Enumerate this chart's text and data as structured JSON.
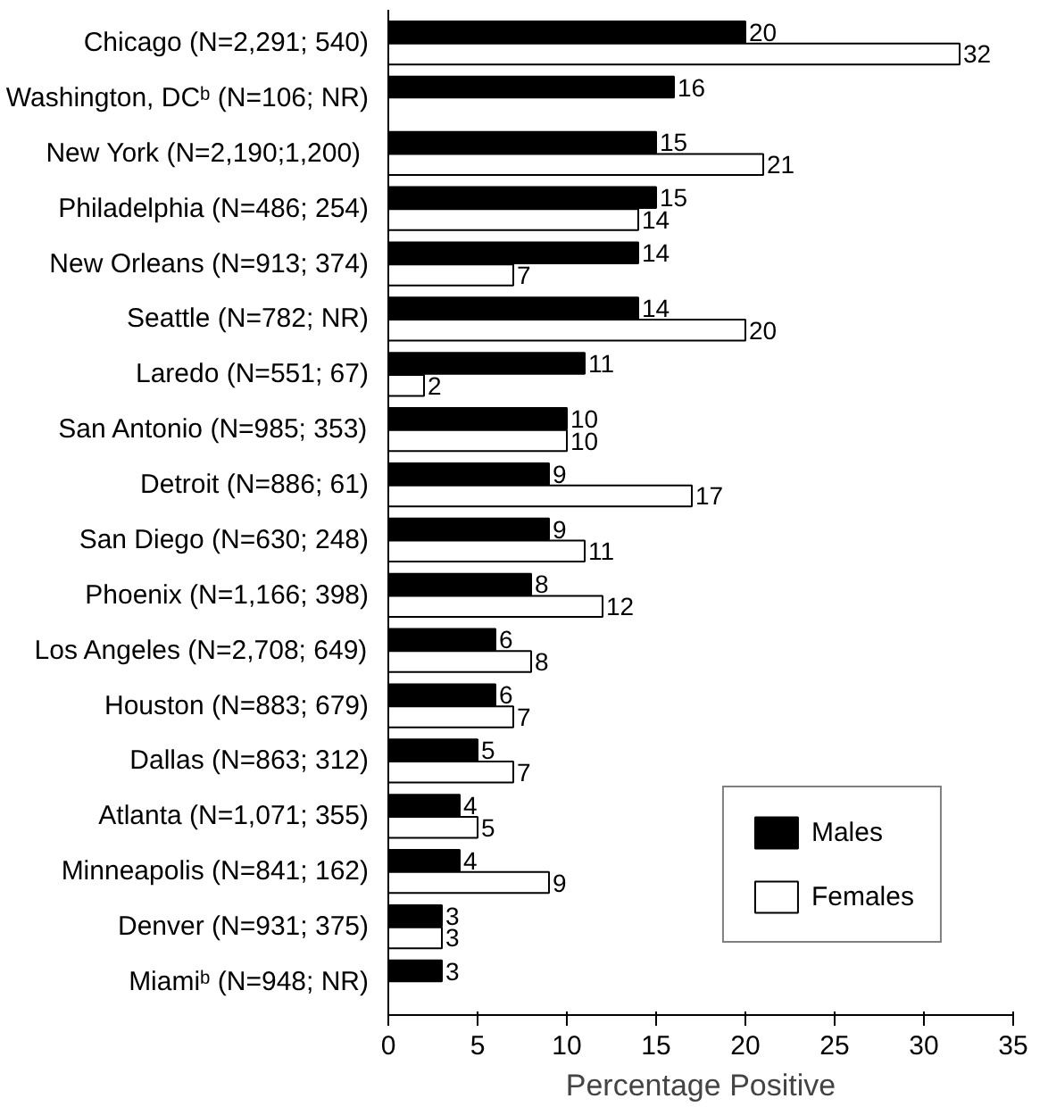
{
  "chart_data": {
    "type": "bar",
    "orientation": "horizontal",
    "xlabel": "Percentage Positive",
    "categories": [
      "Chicago (N=2,291; 540)",
      "Washington, DCᵇ (N=106; NR)",
      "New York  (N=2,190;1,200)",
      "Philadelphia (N=486; 254)",
      "New Orleans (N=913; 374)",
      "Seattle (N=782; NR)",
      "Laredo (N=551; 67)",
      "San Antonio (N=985; 353)",
      "Detroit (N=886; 61)",
      "San Diego (N=630; 248)",
      "Phoenix (N=1,166; 398)",
      "Los Angeles (N=2,708; 649)",
      "Houston (N=883; 679)",
      "Dallas (N=863; 312)",
      "Atlanta (N=1,071; 355)",
      "Minneapolis (N=841; 162)",
      "Denver (N=931; 375)",
      "Miamiᵇ (N=948; NR)"
    ],
    "series": [
      {
        "name": "Males",
        "color": "#000000",
        "values": [
          20,
          16,
          15,
          15,
          14,
          14,
          11,
          10,
          9,
          9,
          8,
          6,
          6,
          5,
          4,
          4,
          3,
          3
        ]
      },
      {
        "name": "Females",
        "color": "#ffffff",
        "values": [
          32,
          null,
          21,
          14,
          7,
          20,
          2,
          10,
          17,
          11,
          12,
          8,
          7,
          7,
          5,
          9,
          3,
          null
        ]
      }
    ],
    "xlim": [
      0,
      35
    ],
    "xticks": [
      0,
      5,
      10,
      15,
      20,
      25,
      30,
      35
    ],
    "grid": false,
    "legend": "bottom right",
    "data_labels": true
  }
}
